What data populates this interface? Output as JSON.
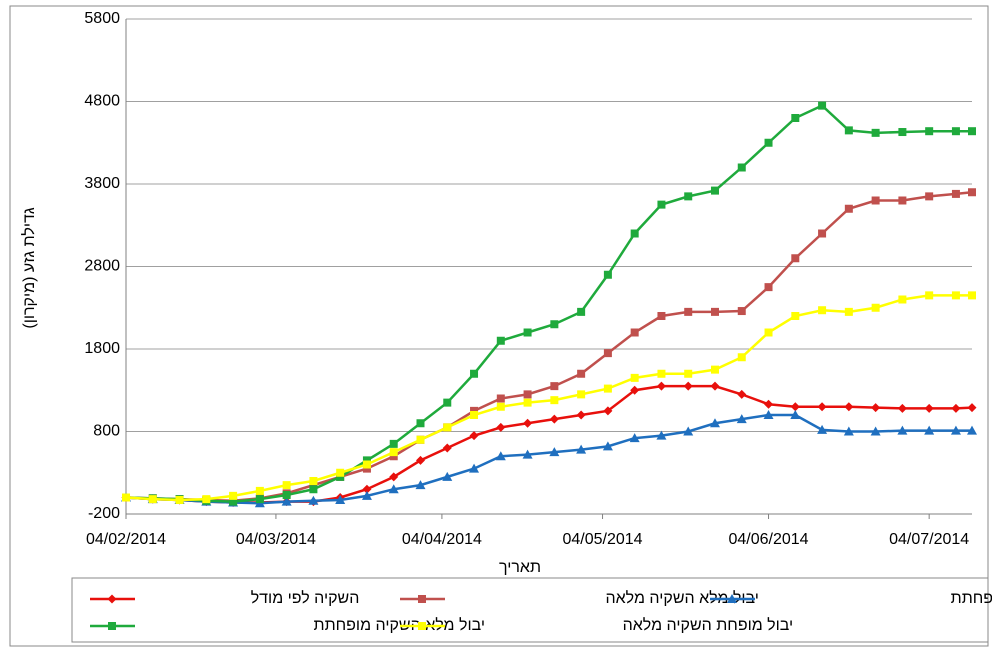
{
  "chart_data": {
    "type": "line",
    "y_label": "גדילת גזע (מיקרון)",
    "x_label": "תאריך",
    "x": [
      "2014-02-04",
      "2014-02-09",
      "2014-02-14",
      "2014-02-19",
      "2014-02-24",
      "2014-03-01",
      "2014-03-06",
      "2014-03-11",
      "2014-03-16",
      "2014-03-21",
      "2014-03-26",
      "2014-03-31",
      "2014-04-05",
      "2014-04-10",
      "2014-04-15",
      "2014-04-20",
      "2014-04-25",
      "2014-04-30",
      "2014-05-05",
      "2014-05-10",
      "2014-05-15",
      "2014-05-20",
      "2014-05-25",
      "2014-05-30",
      "2014-06-04",
      "2014-06-09",
      "2014-06-14",
      "2014-06-19",
      "2014-06-24",
      "2014-06-29",
      "2014-07-04",
      "2014-07-09",
      "2014-07-12"
    ],
    "series": [
      {
        "name": "השקיה לפי מודל",
        "color": "#e8100c",
        "marker": "diamond",
        "values": [
          0,
          -20,
          -30,
          -50,
          -60,
          -60,
          -50,
          -50,
          0,
          100,
          250,
          450,
          600,
          750,
          850,
          900,
          950,
          1000,
          1050,
          1300,
          1350,
          1350,
          1350,
          1250,
          1130,
          1100,
          1100,
          1100,
          1090,
          1080,
          1080,
          1080,
          1090
        ]
      },
      {
        "name": "יבול מלא השקיה מלאה",
        "color": "#c0504d",
        "marker": "square",
        "values": [
          0,
          -10,
          -20,
          -30,
          -40,
          -10,
          50,
          150,
          250,
          350,
          500,
          700,
          850,
          1050,
          1200,
          1250,
          1350,
          1500,
          1750,
          2000,
          2200,
          2250,
          2250,
          2260,
          2550,
          2900,
          3200,
          3500,
          3600,
          3600,
          3650,
          3680,
          3700
        ]
      },
      {
        "name": "יבול מופחת השקיה מופחתת",
        "color": "#1f6fbf",
        "marker": "triangle",
        "values": [
          0,
          -20,
          -30,
          -50,
          -60,
          -70,
          -50,
          -40,
          -30,
          20,
          100,
          150,
          250,
          350,
          500,
          520,
          550,
          580,
          620,
          720,
          750,
          800,
          900,
          950,
          1000,
          1000,
          820,
          800,
          800,
          810,
          810,
          810,
          810
        ]
      },
      {
        "name": "יבול מלא השקיה מופחתת",
        "color": "#1faa3c",
        "marker": "square",
        "values": [
          0,
          -10,
          -20,
          -40,
          -50,
          -20,
          30,
          100,
          250,
          450,
          650,
          900,
          1150,
          1500,
          1900,
          2000,
          2100,
          2250,
          2700,
          3200,
          3550,
          3650,
          3720,
          4000,
          4300,
          4600,
          4750,
          4450,
          4420,
          4430,
          4440,
          4440,
          4440
        ]
      },
      {
        "name": "יבול מופחת השקיה מלאה",
        "color": "#ffff00",
        "marker": "square",
        "values": [
          0,
          -20,
          -30,
          -20,
          20,
          80,
          150,
          200,
          300,
          400,
          550,
          700,
          850,
          1000,
          1100,
          1150,
          1180,
          1250,
          1320,
          1450,
          1500,
          1500,
          1550,
          1700,
          2000,
          2200,
          2270,
          2250,
          2300,
          2400,
          2450,
          2450,
          2450
        ]
      }
    ],
    "xlim": [
      "2014-02-04",
      "2014-07-12"
    ],
    "xticks": [
      {
        "value": "2014-02-04",
        "label": "04/02/2014"
      },
      {
        "value": "2014-03-04",
        "label": "04/03/2014"
      },
      {
        "value": "2014-04-04",
        "label": "04/04/2014"
      },
      {
        "value": "2014-05-04",
        "label": "04/05/2014"
      },
      {
        "value": "2014-06-04",
        "label": "04/06/2014"
      },
      {
        "value": "2014-07-04",
        "label": "04/07/2014"
      }
    ],
    "ylim": [
      -200,
      5800
    ],
    "yticks": [
      -200,
      800,
      1800,
      2800,
      3800,
      4800,
      5800
    ],
    "grid": true,
    "legend": "bottom"
  }
}
